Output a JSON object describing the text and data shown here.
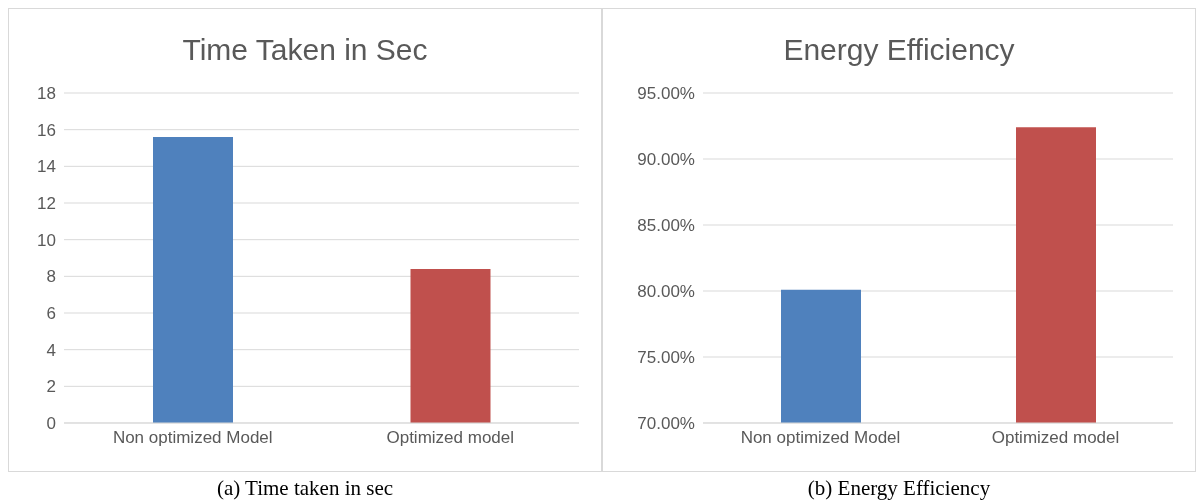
{
  "chart_data": [
    {
      "type": "bar",
      "title": "Time Taken in Sec",
      "categories": [
        "Non optimized Model",
        "Optimized model"
      ],
      "values": [
        15.6,
        8.4
      ],
      "colors": [
        "#4f81bd",
        "#c0504d"
      ],
      "ylim": [
        0,
        18
      ],
      "yticks": [
        0,
        2,
        4,
        6,
        8,
        10,
        12,
        14,
        16,
        18
      ],
      "grid": "y",
      "annotations": [
        "(a) Time taken in sec"
      ]
    },
    {
      "type": "bar",
      "title": "Energy Efficiency",
      "categories": [
        "Non optimized Model",
        "Optimized model"
      ],
      "values": [
        80.1,
        92.4
      ],
      "colors": [
        "#4f81bd",
        "#c0504d"
      ],
      "ylim": [
        70,
        95
      ],
      "yticks": [
        {
          "value": 70,
          "label": "70.00%"
        },
        {
          "value": 75,
          "label": "75.00%"
        },
        {
          "value": 80,
          "label": "80.00%"
        },
        {
          "value": 85,
          "label": "85.00%"
        },
        {
          "value": 90,
          "label": "90.00%"
        },
        {
          "value": 95,
          "label": "95.00%"
        }
      ],
      "grid": "y",
      "annotations": [
        "(b) Energy Efficiency"
      ]
    }
  ]
}
